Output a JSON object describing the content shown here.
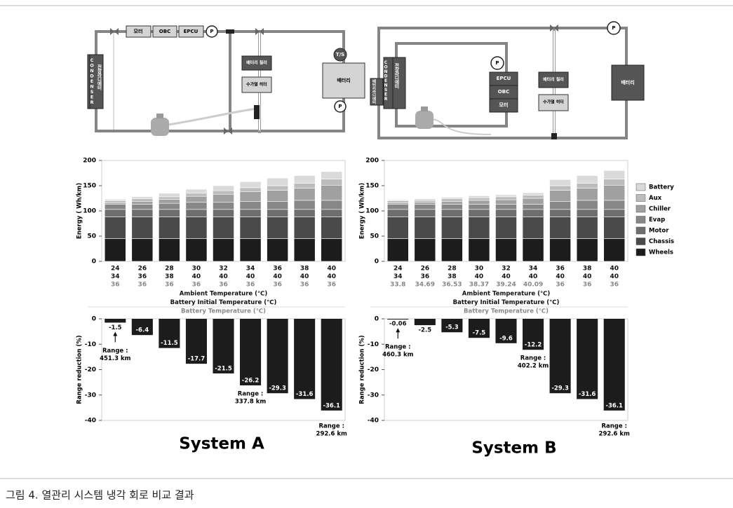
{
  "figure": {
    "diagrams": [
      {
        "labels": {
          "motor": "모터",
          "obc": "OBC",
          "epcu": "EPCU",
          "pump": "P",
          "ts": "T/S",
          "battery": "배터리",
          "chiller": "배터리 칠러",
          "heater": "수가열 히터",
          "condenser": "CONDENSER",
          "radiator": "전장라디에터"
        }
      },
      {
        "labels": {
          "epcu": "EPCU",
          "obc": "OBC",
          "motor": "모터",
          "pump": "P",
          "battery": "배터리",
          "chiller": "배터리 칠러",
          "heater": "수가열 히터",
          "condenser": "CONDENSER",
          "radiator": "전장라디에터",
          "battery_radiator": "배터리라디에터"
        }
      }
    ],
    "caption": "그림 4. 열관리 시스템 냉각 회로 비교 결과"
  },
  "chart_data": [
    {
      "type": "stacked_bar",
      "ylabel": "Energy ( Wh/km)",
      "ylim": [
        0,
        200
      ],
      "yticks": [
        0,
        50,
        100,
        150,
        200
      ],
      "category_rows": [
        {
          "name": "Ambient Temperature (℃)",
          "values": [
            24,
            26,
            28,
            30,
            32,
            34,
            36,
            38,
            40
          ]
        },
        {
          "name": "Battery Initial Temperature (℃)",
          "values": [
            34,
            36,
            38,
            40,
            40,
            40,
            40,
            40,
            40
          ]
        },
        {
          "name": "Battery Temperature (℃)",
          "values": [
            36,
            36,
            36,
            36,
            36,
            36,
            36,
            36,
            36
          ]
        }
      ],
      "series": [
        {
          "name": "Wheels",
          "color": "#1c1c1c",
          "values": [
            45,
            45,
            45,
            45,
            45,
            45,
            45,
            45,
            45
          ]
        },
        {
          "name": "Chassis",
          "color": "#4a4a4a",
          "values": [
            43,
            43,
            43,
            43,
            43,
            43,
            43,
            43,
            43
          ]
        },
        {
          "name": "Motor",
          "color": "#6e6e6e",
          "values": [
            15,
            15,
            15,
            15,
            15,
            15,
            15,
            15,
            15
          ]
        },
        {
          "name": "Evap",
          "color": "#878787",
          "values": [
            10,
            10,
            12,
            14,
            14,
            16,
            16,
            18,
            18
          ]
        },
        {
          "name": "Chiller",
          "color": "#a0a0a0",
          "values": [
            3,
            6,
            8,
            12,
            16,
            19,
            22,
            24,
            30
          ]
        },
        {
          "name": "Aux",
          "color": "#bcbcbc",
          "values": [
            4,
            5,
            5,
            6,
            7,
            8,
            9,
            10,
            12
          ]
        },
        {
          "name": "Battery",
          "color": "#dadada",
          "values": [
            3,
            4,
            7,
            8,
            10,
            12,
            15,
            15,
            15
          ]
        }
      ]
    },
    {
      "type": "bar",
      "title": "System A",
      "ylabel": "Range reduction (%)",
      "ylim": [
        -40,
        0
      ],
      "yticks": [
        0,
        -10,
        -20,
        -30,
        -40
      ],
      "color": "#1c1c1c",
      "values": [
        -1.5,
        -6.4,
        -11.5,
        -17.7,
        -21.5,
        -26.2,
        -29.3,
        -31.6,
        -36.1
      ],
      "annotations": [
        [
          "Range :",
          "451.3 km"
        ],
        [
          "Range :",
          "337.8 km"
        ],
        [
          "Range :",
          "292.6 km"
        ]
      ]
    },
    {
      "type": "stacked_bar",
      "ylabel": "Energy ( Wh/km)",
      "ylim": [
        0,
        200
      ],
      "yticks": [
        0,
        50,
        100,
        150,
        200
      ],
      "legend": "right",
      "category_rows": [
        {
          "name": "Ambient Temperature (℃)",
          "values": [
            24,
            26,
            28,
            30,
            32,
            34,
            36,
            38,
            40
          ]
        },
        {
          "name": "Battery Initial Temperature (℃)",
          "values": [
            34,
            36,
            38,
            40,
            40,
            40,
            40,
            40,
            40
          ]
        },
        {
          "name": "Battery Temperature (℃)",
          "values": [
            33.8,
            34.69,
            36.53,
            38.37,
            39.24,
            40.09,
            36,
            36,
            36
          ]
        }
      ],
      "series": [
        {
          "name": "Wheels",
          "color": "#1c1c1c",
          "values": [
            45,
            45,
            45,
            45,
            45,
            45,
            45,
            45,
            45
          ]
        },
        {
          "name": "Chassis",
          "color": "#4a4a4a",
          "values": [
            43,
            43,
            43,
            43,
            43,
            43,
            43,
            43,
            43
          ]
        },
        {
          "name": "Motor",
          "color": "#6e6e6e",
          "values": [
            15,
            15,
            15,
            15,
            15,
            15,
            15,
            15,
            15
          ]
        },
        {
          "name": "Evap",
          "color": "#878787",
          "values": [
            10,
            10,
            10,
            10,
            10,
            10,
            16,
            18,
            18
          ]
        },
        {
          "name": "Chiller",
          "color": "#a0a0a0",
          "values": [
            3,
            4,
            6,
            8,
            9,
            12,
            22,
            24,
            30
          ]
        },
        {
          "name": "Aux",
          "color": "#bcbcbc",
          "values": [
            4,
            4,
            5,
            5,
            6,
            6,
            9,
            10,
            12
          ]
        },
        {
          "name": "Battery",
          "color": "#dadada",
          "values": [
            2,
            3,
            3,
            4,
            4,
            5,
            12,
            15,
            17
          ]
        }
      ]
    },
    {
      "type": "bar",
      "title": "System B",
      "ylabel": "Range reduction (%)",
      "ylim": [
        -40,
        0
      ],
      "yticks": [
        0,
        -10,
        -20,
        -30,
        -40
      ],
      "color": "#1c1c1c",
      "values": [
        -0.06,
        -2.5,
        -5.3,
        -7.5,
        -9.6,
        -12.2,
        -29.3,
        -31.6,
        -36.1
      ],
      "annotations": [
        [
          "Range :",
          "460.3 km"
        ],
        [
          "Range :",
          "402.2 km"
        ],
        [
          "Range :",
          "292.6 km"
        ]
      ]
    }
  ]
}
